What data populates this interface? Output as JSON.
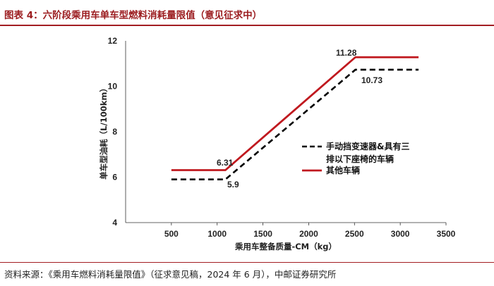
{
  "header": {
    "title": "图表 4：六阶段乘用车单车型燃料消耗量限值（意见征求中）"
  },
  "footer": {
    "source": "资料来源：《乘用车燃料消耗量限值》（征求意见稿，2024 年 6 月），中邮证券研究所"
  },
  "colors": {
    "accent": "#a31d22",
    "series_other": "#c0191f",
    "series_manual": "#000000"
  },
  "chart_data": {
    "type": "line",
    "title": "",
    "xlabel": "乘用车整备质量-CM（kg）",
    "ylabel": "单车型油耗（L/100km）",
    "xlim": [
      0,
      3500
    ],
    "ylim": [
      4,
      12
    ],
    "xticks": [
      "500",
      "1000",
      "1500",
      "2000",
      "2500",
      "3000",
      "3500"
    ],
    "yticks": [
      "4",
      "6",
      "8",
      "10",
      "12"
    ],
    "grid": false,
    "legend_position": "right",
    "series": [
      {
        "name": "手动挡变速器&具有三排以下座椅的车辆",
        "line_style": "dashed",
        "color": "#000000",
        "points": [
          [
            500,
            5.9
          ],
          [
            1090,
            5.9
          ],
          [
            2510,
            10.73
          ],
          [
            3200,
            10.73
          ]
        ]
      },
      {
        "name": "其他车辆",
        "line_style": "solid",
        "color": "#c0191f",
        "points": [
          [
            500,
            6.31
          ],
          [
            1090,
            6.31
          ],
          [
            2510,
            11.28
          ],
          [
            3200,
            11.28
          ]
        ]
      }
    ],
    "annotations": [
      "6.31",
      "5.9",
      "11.28",
      "10.73"
    ],
    "legend_labels": {
      "manual_line1": "手动挡变速器&具有三",
      "manual_line2": "排以下座椅的车辆",
      "other": "其他车辆"
    }
  }
}
